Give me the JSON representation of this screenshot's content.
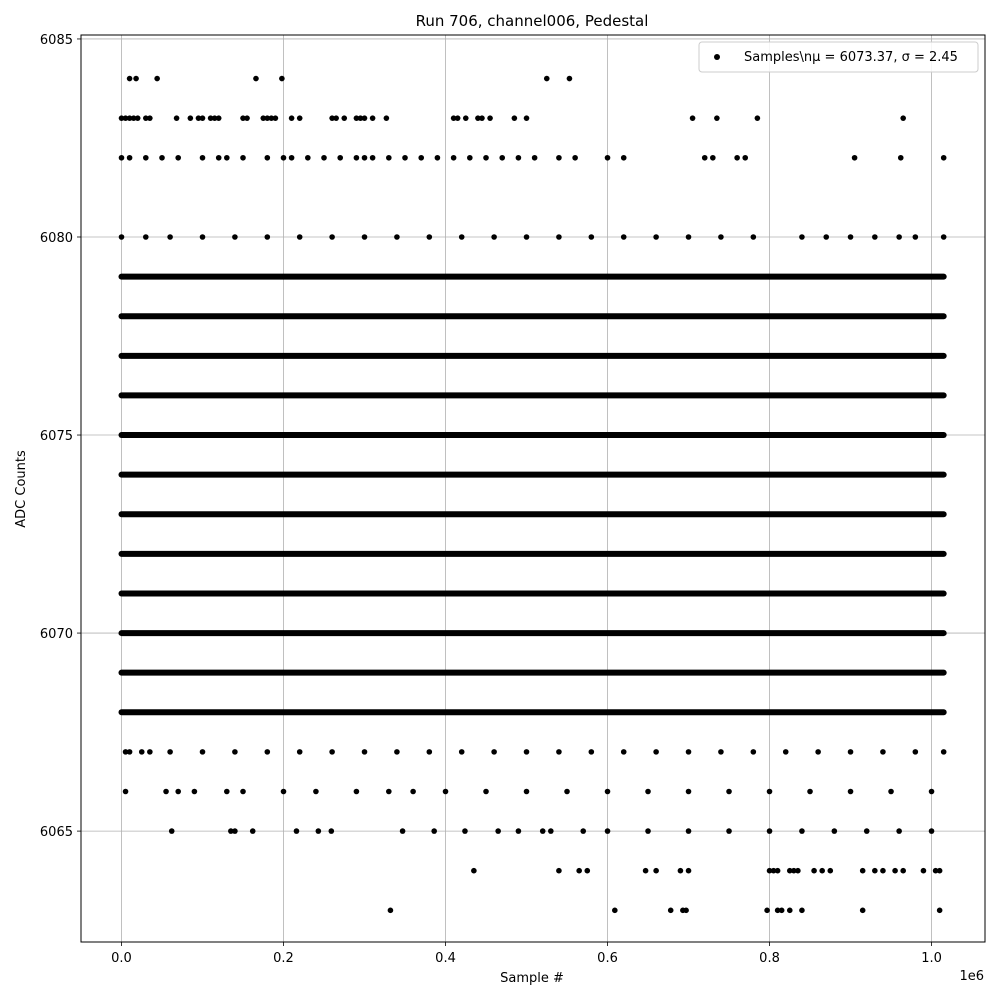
{
  "chart_data": {
    "type": "scatter",
    "title": "Run 706, channel006, Pedestal",
    "xlabel": "Sample #",
    "ylabel": "ADC Counts",
    "x_offset_label": "1e6",
    "xlim": [
      -0.05,
      1.066
    ],
    "ylim": [
      6062.2,
      6085.1
    ],
    "x_scale_factor": 1000000,
    "xticks": [
      0.0,
      0.2,
      0.4,
      0.6,
      0.8,
      1.0
    ],
    "xtick_labels": [
      "0.0",
      "0.2",
      "0.4",
      "0.6",
      "0.8",
      "1.0"
    ],
    "yticks": [
      6065,
      6070,
      6075,
      6080,
      6085
    ],
    "ytick_labels": [
      "6065",
      "6070",
      "6075",
      "6080",
      "6085"
    ],
    "grid": true,
    "legend": {
      "position": "top-right",
      "label": "Samples\\nμ = 6073.37, σ = 2.45"
    },
    "marker_color": "#000000",
    "series": [
      {
        "name": "Samples\\nμ = 6073.37, σ = 2.45",
        "mean": 6073.37,
        "sigma": 2.45,
        "x_range": [
          0,
          1015000
        ],
        "dense_levels": [
          6068,
          6069,
          6070,
          6071,
          6072,
          6073,
          6074,
          6075,
          6076,
          6077,
          6078,
          6079
        ],
        "sparse_points": {
          "6084": [
            0.01,
            0.018,
            0.044,
            0.166,
            0.198,
            0.525,
            0.553
          ],
          "6083": [
            0.0,
            0.005,
            0.01,
            0.015,
            0.02,
            0.03,
            0.035,
            0.068,
            0.085,
            0.095,
            0.1,
            0.11,
            0.115,
            0.12,
            0.15,
            0.155,
            0.175,
            0.18,
            0.185,
            0.19,
            0.21,
            0.22,
            0.26,
            0.265,
            0.275,
            0.29,
            0.295,
            0.3,
            0.31,
            0.327,
            0.41,
            0.415,
            0.425,
            0.44,
            0.445,
            0.455,
            0.485,
            0.5,
            0.705,
            0.735,
            0.785,
            0.965
          ],
          "6082": [
            0.0,
            0.01,
            0.03,
            0.05,
            0.07,
            0.1,
            0.12,
            0.13,
            0.15,
            0.18,
            0.2,
            0.21,
            0.23,
            0.25,
            0.27,
            0.29,
            0.3,
            0.31,
            0.33,
            0.35,
            0.37,
            0.39,
            0.41,
            0.43,
            0.45,
            0.47,
            0.49,
            0.51,
            0.54,
            0.56,
            0.6,
            0.62,
            0.72,
            0.73,
            0.76,
            0.77,
            0.905,
            0.962,
            1.015
          ],
          "6080": [
            0.0,
            0.03,
            0.06,
            0.1,
            0.14,
            0.18,
            0.22,
            0.26,
            0.3,
            0.34,
            0.38,
            0.42,
            0.46,
            0.5,
            0.54,
            0.58,
            0.62,
            0.66,
            0.7,
            0.74,
            0.78,
            0.84,
            0.87,
            0.9,
            0.93,
            0.96,
            0.98,
            1.015
          ],
          "6067": [
            0.005,
            0.01,
            0.025,
            0.035,
            0.06,
            0.1,
            0.14,
            0.18,
            0.22,
            0.26,
            0.3,
            0.34,
            0.38,
            0.42,
            0.46,
            0.5,
            0.54,
            0.58,
            0.62,
            0.66,
            0.7,
            0.74,
            0.78,
            0.82,
            0.86,
            0.9,
            0.94,
            0.98,
            1.015
          ],
          "6066": [
            0.005,
            0.055,
            0.07,
            0.09,
            0.13,
            0.15,
            0.2,
            0.24,
            0.29,
            0.33,
            0.36,
            0.4,
            0.45,
            0.5,
            0.55,
            0.6,
            0.65,
            0.7,
            0.75,
            0.8,
            0.85,
            0.9,
            0.95,
            1.0
          ],
          "6065": [
            0.062,
            0.135,
            0.14,
            0.162,
            0.216,
            0.243,
            0.259,
            0.347,
            0.386,
            0.424,
            0.465,
            0.49,
            0.52,
            0.53,
            0.57,
            0.6,
            0.65,
            0.7,
            0.75,
            0.8,
            0.84,
            0.88,
            0.92,
            0.96,
            1.0
          ],
          "6064": [
            0.435,
            0.54,
            0.565,
            0.575,
            0.647,
            0.66,
            0.69,
            0.7,
            0.8,
            0.805,
            0.81,
            0.825,
            0.83,
            0.835,
            0.855,
            0.865,
            0.875,
            0.915,
            0.93,
            0.94,
            0.955,
            0.965,
            0.99,
            1.005,
            1.01
          ],
          "6063": [
            0.332,
            0.609,
            0.678,
            0.693,
            0.697,
            0.797,
            0.81,
            0.815,
            0.825,
            0.84,
            0.915,
            1.01
          ]
        }
      }
    ]
  }
}
